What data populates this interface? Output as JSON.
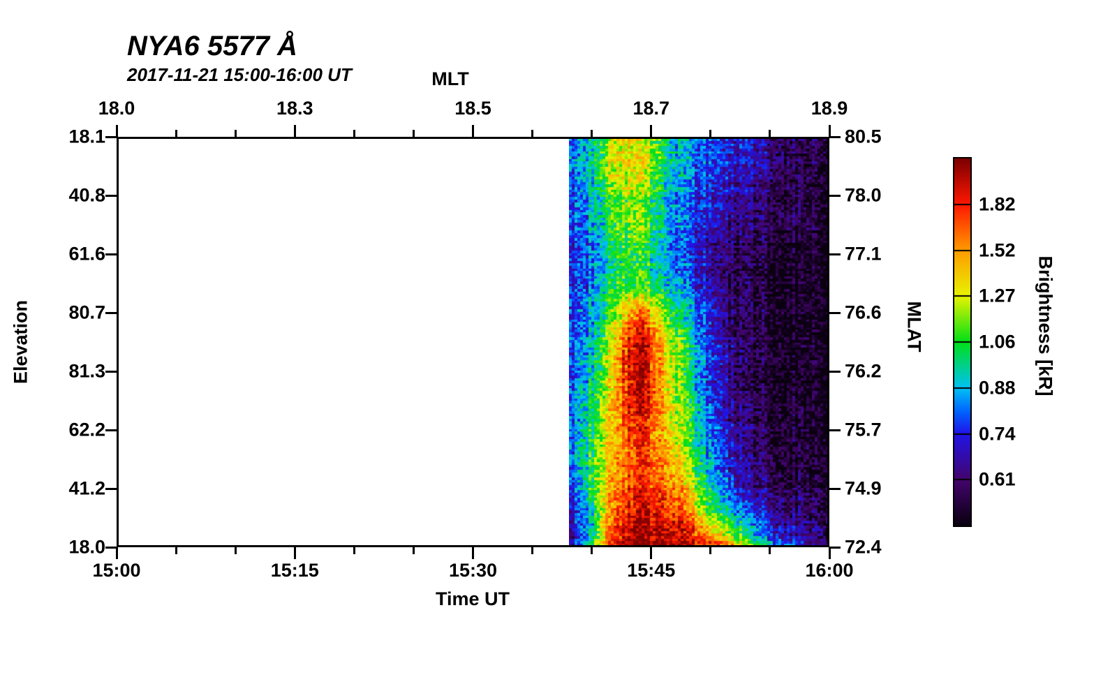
{
  "title": "NYA6 5577 Å",
  "subtitle": "2017-11-21 15:00-16:00 UT",
  "axes": {
    "top": {
      "label": "MLT",
      "tick_labels": [
        "18.0",
        "18.3",
        "18.5",
        "18.7",
        "18.9"
      ]
    },
    "bottom": {
      "label": "Time UT",
      "tick_labels": [
        "15:00",
        "15:15",
        "15:30",
        "15:45",
        "16:00"
      ]
    },
    "left": {
      "label": "Elevation",
      "tick_labels": [
        "18.1",
        "40.8",
        "61.6",
        "80.7",
        "81.3",
        "62.2",
        "41.2",
        "18.0"
      ]
    },
    "right": {
      "label": "MLAT",
      "tick_labels": [
        "80.5",
        "78.0",
        "77.1",
        "76.6",
        "76.2",
        "75.7",
        "74.9",
        "72.4"
      ]
    }
  },
  "colorbar": {
    "label": "Brightness [kR]",
    "tick_labels": [
      "1.82",
      "1.52",
      "1.27",
      "1.06",
      "0.88",
      "0.74",
      "0.61"
    ]
  },
  "chart_data": {
    "type": "heatmap",
    "title": "NYA6 5577 Å",
    "subtitle": "2017-11-21 15:00-16:00 UT",
    "x_axis": {
      "label": "Time UT",
      "range_minutes": [
        0,
        60
      ],
      "major_tick_labels": [
        "15:00",
        "15:15",
        "15:30",
        "15:45",
        "16:00"
      ],
      "minor_tick_step_minutes": 5,
      "grid": false
    },
    "top_axis": {
      "label": "MLT",
      "tick_values": [
        18.0,
        18.3,
        18.5,
        18.7,
        18.9
      ]
    },
    "y_axis_left": {
      "label": "Elevation",
      "tick_values": [
        18.1,
        40.8,
        61.6,
        80.7,
        81.3,
        62.2,
        41.2,
        18.0
      ]
    },
    "y_axis_right": {
      "label": "MLAT",
      "tick_values": [
        80.5,
        78.0,
        77.1,
        76.6,
        76.2,
        75.7,
        74.9,
        72.4
      ]
    },
    "colorbar": {
      "label": "Brightness [kR]",
      "tick_values": [
        1.82,
        1.52,
        1.27,
        1.06,
        0.88,
        0.74,
        0.61
      ],
      "scale": "log",
      "value_domain_kR": [
        0.5,
        2.2
      ],
      "segments": 8,
      "position": "right"
    },
    "no_data_region_minutes": [
      0,
      38
    ],
    "data_region_minutes": [
      38,
      60
    ],
    "colormap_stops": [
      [
        0.0,
        "#0a0010"
      ],
      [
        0.125,
        "#44056e"
      ],
      [
        0.25,
        "#2114e8"
      ],
      [
        0.31,
        "#0064ff"
      ],
      [
        0.375,
        "#00c2f5"
      ],
      [
        0.5,
        "#00e018"
      ],
      [
        0.625,
        "#e8f400"
      ],
      [
        0.75,
        "#ff9c00"
      ],
      [
        0.875,
        "#ff1800"
      ],
      [
        1.0,
        "#7e0000"
      ]
    ],
    "grid": {
      "description": "Brightness in kR. 22 columns = minutes 15:38..15:59 (left to right). 20 rows = scan angle top (Elevation 18.1 / MLAT 80.5) to bottom (Elevation 18.0 / MLAT 72.4).",
      "cols": 22,
      "rows": 20,
      "values_kR": [
        [
          0.78,
          0.83,
          0.96,
          1.12,
          1.26,
          1.3,
          1.24,
          1.1,
          0.95,
          0.86,
          0.8,
          0.76,
          0.73,
          0.72,
          0.7,
          0.66,
          0.63,
          0.6,
          0.58,
          0.57,
          0.56,
          0.55
        ],
        [
          0.78,
          0.85,
          0.98,
          1.16,
          1.31,
          1.36,
          1.3,
          1.15,
          0.98,
          0.88,
          0.82,
          0.78,
          0.75,
          0.73,
          0.7,
          0.67,
          0.64,
          0.6,
          0.58,
          0.57,
          0.56,
          0.55
        ],
        [
          0.76,
          0.83,
          0.95,
          1.1,
          1.24,
          1.29,
          1.2,
          1.06,
          0.92,
          0.85,
          0.8,
          0.75,
          0.72,
          0.7,
          0.68,
          0.64,
          0.61,
          0.59,
          0.57,
          0.56,
          0.55,
          0.54
        ],
        [
          0.74,
          0.8,
          0.88,
          1.0,
          1.12,
          1.18,
          1.12,
          1.0,
          0.88,
          0.82,
          0.76,
          0.72,
          0.69,
          0.66,
          0.64,
          0.61,
          0.59,
          0.57,
          0.56,
          0.55,
          0.54,
          0.54
        ],
        [
          0.72,
          0.78,
          0.85,
          0.95,
          1.08,
          1.14,
          1.08,
          0.96,
          0.86,
          0.8,
          0.74,
          0.7,
          0.66,
          0.63,
          0.61,
          0.59,
          0.57,
          0.56,
          0.55,
          0.54,
          0.53,
          0.53
        ],
        [
          0.7,
          0.76,
          0.83,
          0.92,
          1.04,
          1.1,
          1.05,
          0.95,
          0.85,
          0.78,
          0.72,
          0.68,
          0.64,
          0.61,
          0.59,
          0.57,
          0.55,
          0.54,
          0.54,
          0.53,
          0.53,
          0.52
        ],
        [
          0.7,
          0.75,
          0.82,
          0.9,
          1.0,
          1.06,
          1.02,
          0.95,
          0.88,
          0.8,
          0.73,
          0.68,
          0.63,
          0.6,
          0.58,
          0.56,
          0.54,
          0.53,
          0.53,
          0.52,
          0.52,
          0.52
        ],
        [
          0.7,
          0.76,
          0.84,
          0.95,
          1.05,
          1.1,
          1.08,
          1.0,
          0.92,
          0.85,
          0.76,
          0.7,
          0.64,
          0.6,
          0.58,
          0.56,
          0.54,
          0.53,
          0.52,
          0.52,
          0.52,
          0.52
        ],
        [
          0.71,
          0.78,
          0.88,
          1.0,
          1.2,
          1.46,
          1.5,
          1.3,
          1.1,
          0.95,
          0.85,
          0.75,
          0.66,
          0.61,
          0.58,
          0.56,
          0.54,
          0.53,
          0.52,
          0.52,
          0.52,
          0.52
        ],
        [
          0.72,
          0.8,
          0.9,
          1.1,
          1.4,
          1.85,
          1.9,
          1.55,
          1.25,
          1.05,
          0.9,
          0.78,
          0.68,
          0.62,
          0.58,
          0.56,
          0.54,
          0.53,
          0.52,
          0.52,
          0.52,
          0.52
        ],
        [
          0.72,
          0.82,
          0.92,
          1.15,
          1.45,
          1.96,
          2.02,
          1.6,
          1.3,
          1.1,
          0.92,
          0.8,
          0.7,
          0.63,
          0.58,
          0.56,
          0.54,
          0.53,
          0.52,
          0.52,
          0.52,
          0.52
        ],
        [
          0.73,
          0.85,
          0.95,
          1.2,
          1.5,
          2.0,
          2.05,
          1.65,
          1.34,
          1.12,
          0.95,
          0.8,
          0.7,
          0.63,
          0.59,
          0.56,
          0.54,
          0.53,
          0.52,
          0.52,
          0.52,
          0.52
        ],
        [
          0.73,
          0.87,
          0.98,
          1.25,
          1.5,
          1.95,
          2.0,
          1.62,
          1.35,
          1.12,
          0.95,
          0.82,
          0.72,
          0.64,
          0.59,
          0.56,
          0.54,
          0.53,
          0.53,
          0.52,
          0.52,
          0.52
        ],
        [
          0.74,
          0.88,
          1.0,
          1.26,
          1.46,
          1.82,
          1.86,
          1.56,
          1.35,
          1.15,
          0.98,
          0.85,
          0.74,
          0.66,
          0.6,
          0.57,
          0.55,
          0.54,
          0.53,
          0.53,
          0.52,
          0.52
        ],
        [
          0.75,
          0.9,
          1.02,
          1.3,
          1.45,
          1.7,
          1.76,
          1.55,
          1.4,
          1.2,
          1.0,
          0.88,
          0.76,
          0.68,
          0.62,
          0.58,
          0.55,
          0.54,
          0.53,
          0.53,
          0.53,
          0.53
        ],
        [
          0.75,
          0.92,
          1.05,
          1.35,
          1.5,
          1.7,
          1.72,
          1.6,
          1.46,
          1.3,
          1.06,
          0.92,
          0.8,
          0.7,
          0.64,
          0.6,
          0.57,
          0.55,
          0.54,
          0.54,
          0.54,
          0.54
        ],
        [
          0.72,
          0.9,
          1.1,
          1.4,
          1.56,
          1.76,
          1.8,
          1.7,
          1.6,
          1.46,
          1.2,
          1.0,
          0.88,
          0.76,
          0.68,
          0.63,
          0.6,
          0.58,
          0.57,
          0.56,
          0.56,
          0.55
        ],
        [
          0.64,
          0.8,
          1.0,
          1.38,
          1.62,
          1.86,
          1.9,
          1.82,
          1.76,
          1.6,
          1.36,
          1.1,
          0.95,
          0.85,
          0.75,
          0.68,
          0.64,
          0.62,
          0.6,
          0.59,
          0.58,
          0.57
        ],
        [
          0.6,
          0.76,
          0.96,
          1.42,
          1.76,
          2.02,
          2.06,
          2.0,
          1.95,
          1.86,
          1.62,
          1.4,
          1.2,
          1.05,
          0.92,
          0.8,
          0.72,
          0.66,
          0.63,
          0.61,
          0.6,
          0.58
        ],
        [
          0.6,
          0.8,
          1.05,
          1.55,
          1.98,
          2.18,
          2.18,
          2.16,
          2.14,
          2.1,
          2.0,
          1.9,
          1.76,
          1.5,
          1.26,
          1.06,
          0.93,
          0.83,
          0.76,
          0.7,
          0.66,
          0.62
        ]
      ]
    }
  }
}
